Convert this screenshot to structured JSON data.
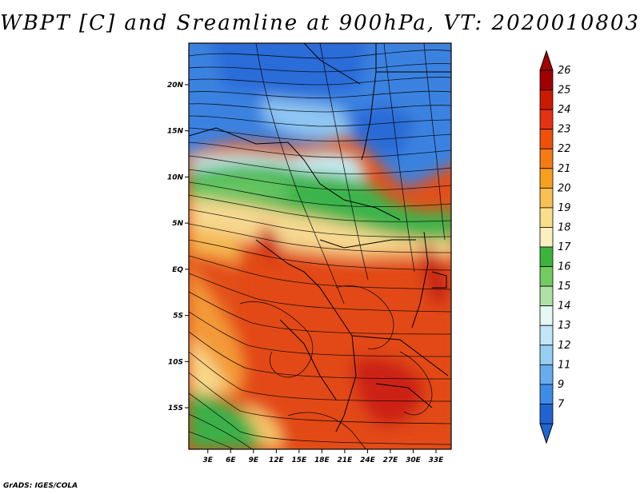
{
  "title": "WBPT [C] and Sreamline at 900hPa, VT: 2020010803",
  "credit": "GrADS: IGES/COLA",
  "lat_ticks": [
    {
      "label": "20N",
      "value": 20
    },
    {
      "label": "15N",
      "value": 15
    },
    {
      "label": "10N",
      "value": 10
    },
    {
      "label": "5N",
      "value": 5
    },
    {
      "label": "EQ",
      "value": 0
    },
    {
      "label": "5S",
      "value": -5
    },
    {
      "label": "10S",
      "value": -10
    },
    {
      "label": "15S",
      "value": -15
    }
  ],
  "lon_ticks": [
    {
      "label": "3E",
      "value": 3
    },
    {
      "label": "6E",
      "value": 6
    },
    {
      "label": "9E",
      "value": 9
    },
    {
      "label": "12E",
      "value": 12
    },
    {
      "label": "15E",
      "value": 15
    },
    {
      "label": "18E",
      "value": 18
    },
    {
      "label": "21E",
      "value": 21
    },
    {
      "label": "24E",
      "value": 24
    },
    {
      "label": "27E",
      "value": 27
    },
    {
      "label": "30E",
      "value": 30
    },
    {
      "label": "33E",
      "value": 33
    }
  ],
  "map_extent": {
    "lon_min": 0.5,
    "lon_max": 35,
    "lat_min": -19.5,
    "lat_max": 24.5
  },
  "colorbar": {
    "levels": [
      "26",
      "25",
      "24",
      "23",
      "22",
      "21",
      "20",
      "19",
      "18",
      "17",
      "16",
      "15",
      "14",
      "13",
      "12",
      "11",
      "9",
      "7"
    ],
    "colors": [
      "#a00000",
      "#cc1a00",
      "#e53212",
      "#f0500a",
      "#f57a14",
      "#f8a01e",
      "#f8c050",
      "#f8de88",
      "#fcf0c0",
      "#3cb43c",
      "#72cc60",
      "#b0e2a8",
      "#e4f8f4",
      "#c2e6f8",
      "#96cef4",
      "#66acf0",
      "#3c8ce8",
      "#2064d2"
    ]
  }
}
